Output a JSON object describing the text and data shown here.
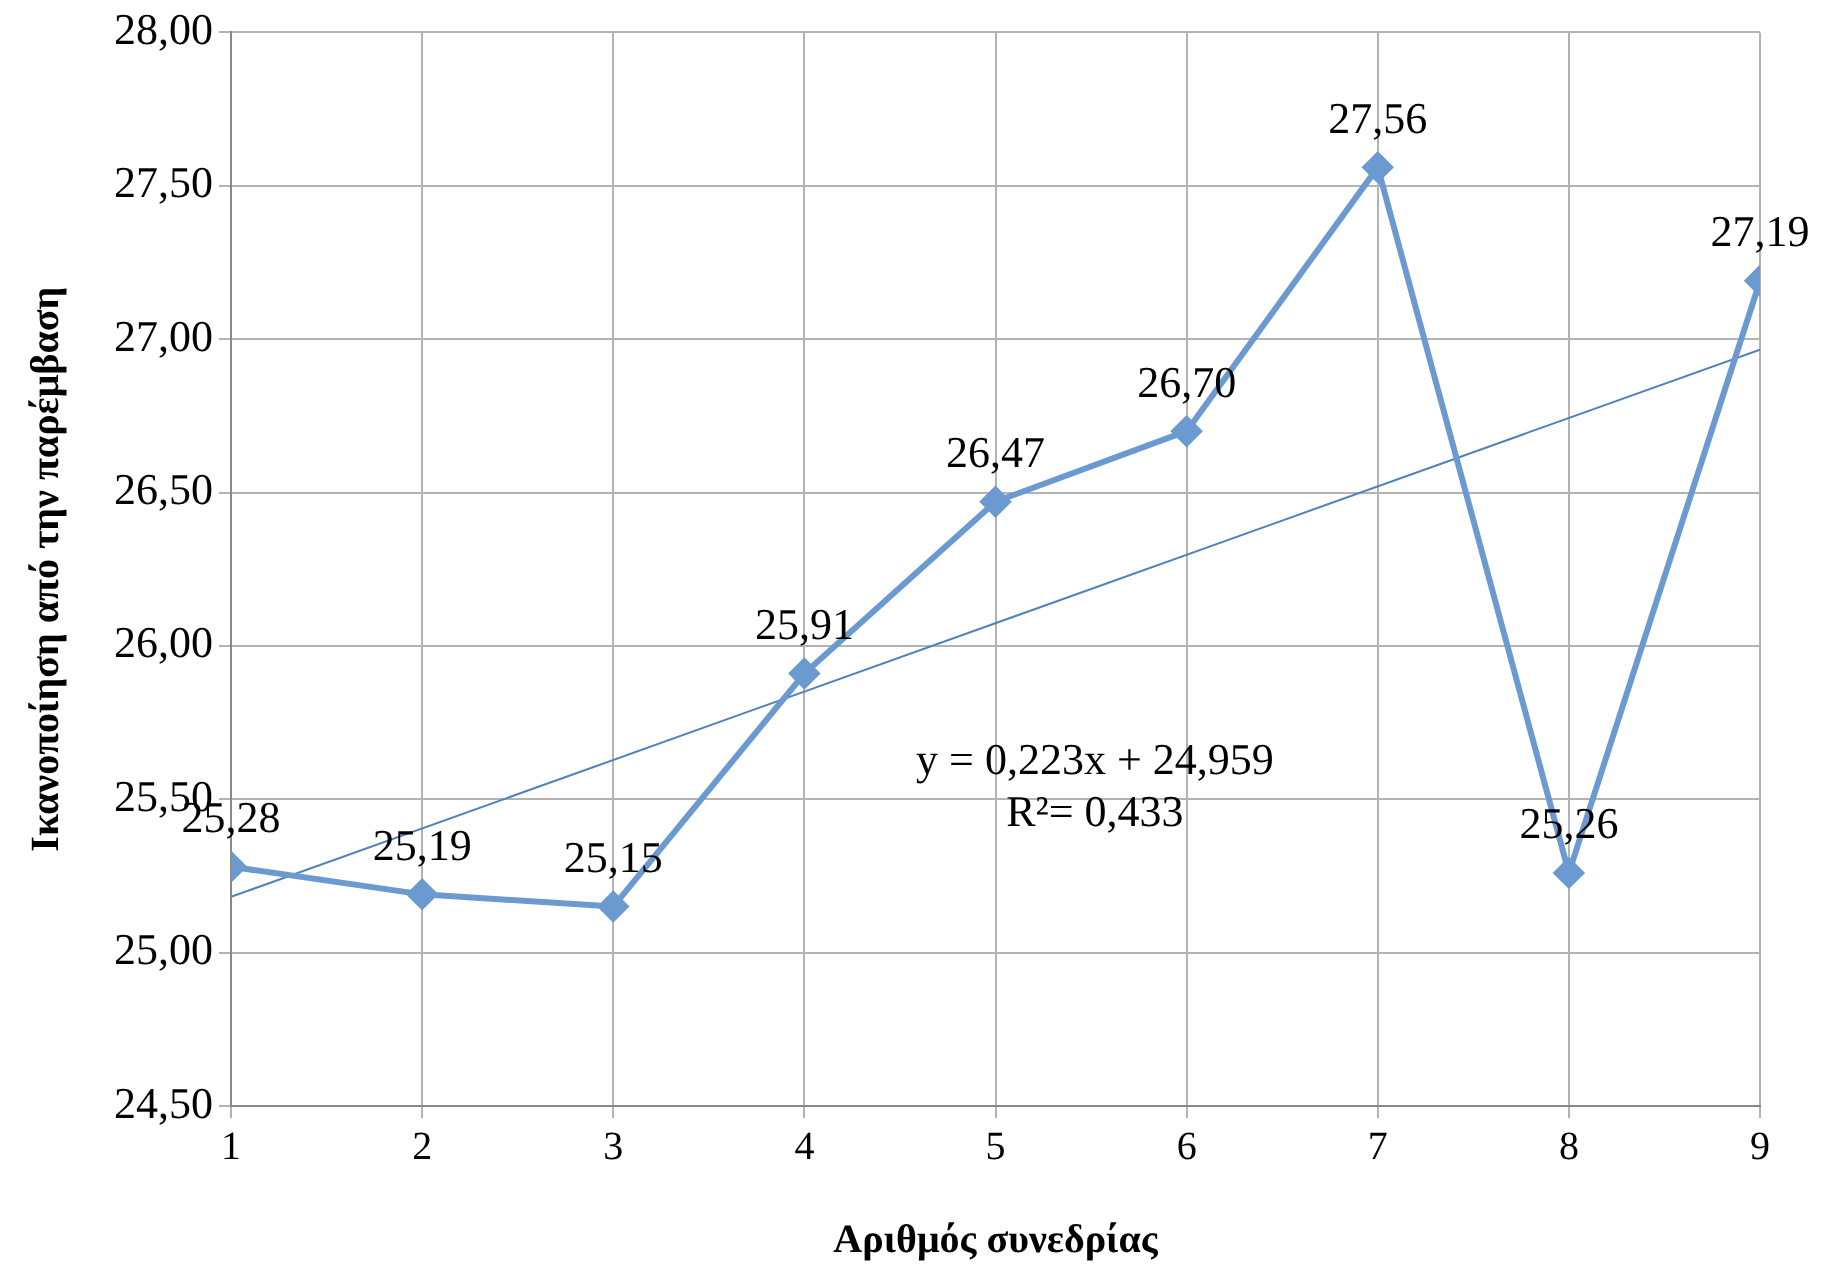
{
  "chart_data": {
    "type": "line",
    "xlabel": "Αριθμός συνεδρίας",
    "ylabel": "Ικανοποίηση από την παρέμβαση",
    "x": [
      1,
      2,
      3,
      4,
      5,
      6,
      7,
      8,
      9
    ],
    "series": [
      {
        "color": "#6a9ad0",
        "values": [
          25.28,
          25.19,
          25.15,
          25.91,
          26.47,
          26.7,
          27.56,
          25.26,
          27.19
        ],
        "value_labels": [
          "25,28",
          "25,19",
          "25,15",
          "25,91",
          "26,47",
          "26,70",
          "27,56",
          "25,26",
          "27,19"
        ],
        "marker": "diamond"
      },
      {
        "type": "line",
        "color": "#4f81bd",
        "x": [
          1,
          9
        ],
        "values": [
          25.182,
          26.966
        ],
        "marker": "none"
      }
    ],
    "xlim": [
      1,
      9
    ],
    "xticks": [
      1,
      2,
      3,
      4,
      5,
      6,
      7,
      8,
      9
    ],
    "ylim": [
      24.5,
      28
    ],
    "yticks": [
      {
        "value": 24.5,
        "label": "24,50"
      },
      {
        "value": 25,
        "label": "25,00"
      },
      {
        "value": 25.5,
        "label": "25,50"
      },
      {
        "value": 26,
        "label": "26,00"
      },
      {
        "value": 26.5,
        "label": "26,50"
      },
      {
        "value": 27,
        "label": "27,00"
      },
      {
        "value": 27.5,
        "label": "27,50"
      },
      {
        "value": 28,
        "label": "28,00"
      }
    ],
    "grid": true,
    "annotations": [
      "y = 0,223x + 24,959",
      "R²= 0,433"
    ]
  }
}
